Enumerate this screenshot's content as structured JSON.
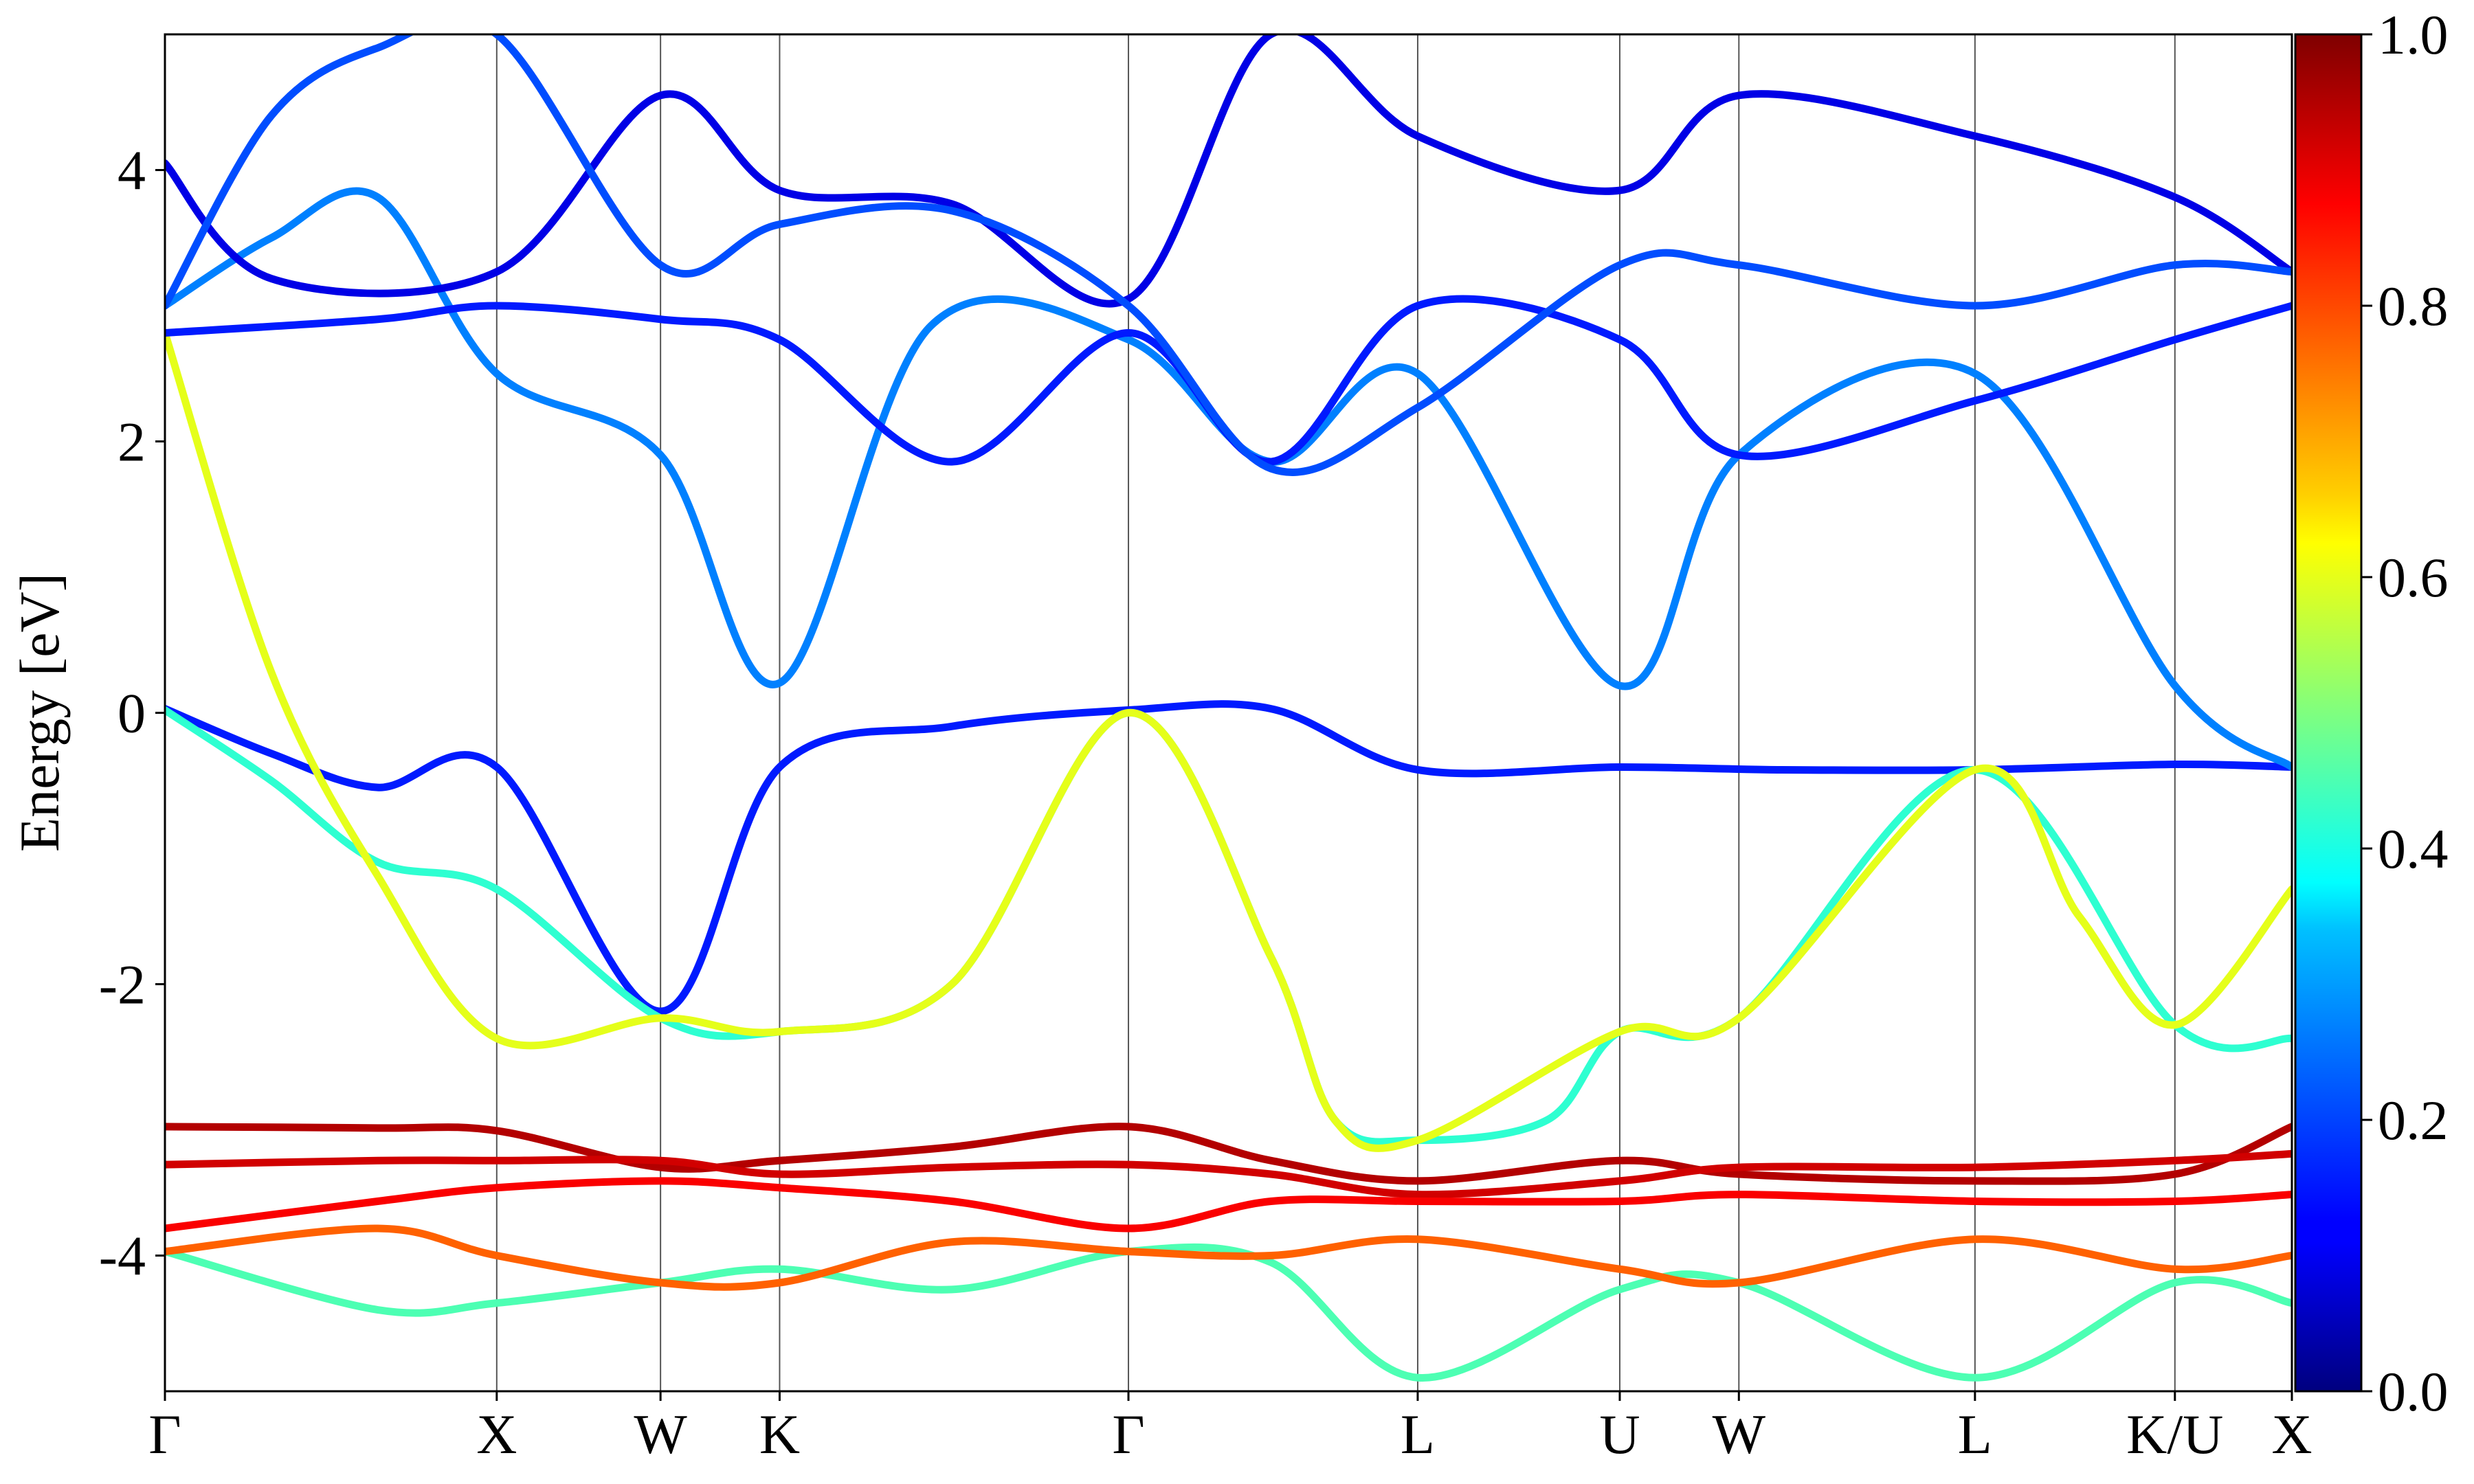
{
  "chart_data": {
    "type": "line",
    "title": "",
    "xlabel": "",
    "ylabel": "Energy [eV]",
    "ylim": [
      -5,
      5
    ],
    "yticks": [
      {
        "value": 4,
        "label": "4"
      },
      {
        "value": 2,
        "label": "2"
      },
      {
        "value": 0,
        "label": "0"
      },
      {
        "value": -2,
        "label": "-2"
      },
      {
        "value": -4,
        "label": "-4"
      }
    ],
    "k_path_labels": [
      "Γ",
      "X",
      "W",
      "K",
      "Γ",
      "L",
      "U",
      "W",
      "L",
      "K/U",
      "X"
    ],
    "k_path_positions": [
      0,
      0.156,
      0.233,
      0.289,
      0.453,
      0.589,
      0.684,
      0.74,
      0.851,
      0.945,
      1.0
    ],
    "colorbar": {
      "label": "",
      "range": [
        0.0,
        1.0
      ],
      "ticks": [
        {
          "value": 0.0,
          "label": "0.0"
        },
        {
          "value": 0.2,
          "label": "0.2"
        },
        {
          "value": 0.4,
          "label": "0.4"
        },
        {
          "value": 0.6,
          "label": "0.6"
        },
        {
          "value": 0.8,
          "label": "0.8"
        },
        {
          "value": 1.0,
          "label": "1.0"
        }
      ],
      "colormap": "jet"
    },
    "grid": false,
    "series": [
      {
        "points": [
          [
            0,
            0.03
          ],
          [
            0.05,
            -0.3
          ],
          [
            0.1,
            -0.55
          ],
          [
            0.156,
            -0.4
          ],
          [
            0.233,
            -2.2
          ],
          [
            0.289,
            -0.4
          ],
          [
            0.37,
            -0.1
          ],
          [
            0.453,
            0.02
          ],
          [
            0.52,
            0.03
          ],
          [
            0.589,
            -0.42
          ],
          [
            0.684,
            -0.4
          ],
          [
            0.76,
            -0.42
          ],
          [
            0.851,
            -0.42
          ],
          [
            0.945,
            -0.38
          ],
          [
            1.0,
            -0.4
          ]
        ],
        "weight": 0.15
      },
      {
        "points": [
          [
            0,
            0.02
          ],
          [
            0.05,
            -0.5
          ],
          [
            0.1,
            -1.1
          ],
          [
            0.156,
            -1.3
          ],
          [
            0.233,
            -2.25
          ],
          [
            0.289,
            -2.35
          ],
          [
            0.37,
            -2.0
          ],
          [
            0.453,
            0.0
          ],
          [
            0.52,
            -1.8
          ],
          [
            0.55,
            -3.0
          ],
          [
            0.589,
            -3.15
          ],
          [
            0.65,
            -3.0
          ],
          [
            0.684,
            -2.35
          ],
          [
            0.74,
            -2.25
          ],
          [
            0.851,
            -0.42
          ],
          [
            0.945,
            -2.3
          ],
          [
            1.0,
            -2.4
          ]
        ],
        "weight": 0.42
      },
      {
        "points": [
          [
            0,
            2.8
          ],
          [
            0.05,
            0.3
          ],
          [
            0.1,
            -1.2
          ],
          [
            0.156,
            -2.4
          ],
          [
            0.233,
            -2.25
          ],
          [
            0.289,
            -2.35
          ],
          [
            0.37,
            -2.0
          ],
          [
            0.453,
            0.0
          ],
          [
            0.52,
            -1.8
          ],
          [
            0.55,
            -3.0
          ],
          [
            0.589,
            -3.15
          ],
          [
            0.684,
            -2.35
          ],
          [
            0.74,
            -2.25
          ],
          [
            0.851,
            -0.42
          ],
          [
            0.9,
            -1.5
          ],
          [
            0.945,
            -2.3
          ],
          [
            1.0,
            -1.3
          ]
        ],
        "weight": 0.6
      },
      {
        "points": [
          [
            0,
            -3.05
          ],
          [
            0.1,
            -3.06
          ],
          [
            0.156,
            -3.08
          ],
          [
            0.233,
            -3.35
          ],
          [
            0.289,
            -3.3
          ],
          [
            0.37,
            -3.2
          ],
          [
            0.453,
            -3.05
          ],
          [
            0.52,
            -3.3
          ],
          [
            0.589,
            -3.45
          ],
          [
            0.684,
            -3.3
          ],
          [
            0.74,
            -3.4
          ],
          [
            0.851,
            -3.45
          ],
          [
            0.945,
            -3.4
          ],
          [
            1.0,
            -3.05
          ]
        ],
        "weight": 0.95
      },
      {
        "points": [
          [
            0,
            -3.33
          ],
          [
            0.1,
            -3.3
          ],
          [
            0.156,
            -3.3
          ],
          [
            0.233,
            -3.3
          ],
          [
            0.289,
            -3.4
          ],
          [
            0.37,
            -3.35
          ],
          [
            0.453,
            -3.33
          ],
          [
            0.52,
            -3.4
          ],
          [
            0.589,
            -3.55
          ],
          [
            0.684,
            -3.45
          ],
          [
            0.74,
            -3.35
          ],
          [
            0.851,
            -3.35
          ],
          [
            0.945,
            -3.3
          ],
          [
            1.0,
            -3.25
          ]
        ],
        "weight": 0.92
      },
      {
        "points": [
          [
            0,
            -3.8
          ],
          [
            0.1,
            -3.6
          ],
          [
            0.156,
            -3.5
          ],
          [
            0.233,
            -3.45
          ],
          [
            0.289,
            -3.5
          ],
          [
            0.37,
            -3.6
          ],
          [
            0.453,
            -3.8
          ],
          [
            0.52,
            -3.6
          ],
          [
            0.589,
            -3.6
          ],
          [
            0.684,
            -3.6
          ],
          [
            0.74,
            -3.55
          ],
          [
            0.851,
            -3.6
          ],
          [
            0.945,
            -3.6
          ],
          [
            1.0,
            -3.55
          ]
        ],
        "weight": 0.88
      },
      {
        "points": [
          [
            0,
            -3.97
          ],
          [
            0.1,
            -4.4
          ],
          [
            0.156,
            -4.35
          ],
          [
            0.233,
            -4.2
          ],
          [
            0.289,
            -4.1
          ],
          [
            0.37,
            -4.25
          ],
          [
            0.453,
            -3.97
          ],
          [
            0.52,
            -4.05
          ],
          [
            0.589,
            -4.9
          ],
          [
            0.684,
            -4.25
          ],
          [
            0.74,
            -4.2
          ],
          [
            0.851,
            -4.9
          ],
          [
            0.945,
            -4.2
          ],
          [
            1.0,
            -4.35
          ]
        ],
        "weight": 0.45
      },
      {
        "points": [
          [
            0,
            -3.97
          ],
          [
            0.1,
            -3.8
          ],
          [
            0.156,
            -4.0
          ],
          [
            0.233,
            -4.2
          ],
          [
            0.289,
            -4.2
          ],
          [
            0.37,
            -3.9
          ],
          [
            0.453,
            -3.97
          ],
          [
            0.52,
            -4.0
          ],
          [
            0.589,
            -3.88
          ],
          [
            0.684,
            -4.1
          ],
          [
            0.74,
            -4.2
          ],
          [
            0.851,
            -3.88
          ],
          [
            0.945,
            -4.1
          ],
          [
            1.0,
            -4.0
          ]
        ],
        "weight": 0.78
      },
      {
        "points": [
          [
            0,
            3.0
          ],
          [
            0.05,
            3.5
          ],
          [
            0.1,
            3.8
          ],
          [
            0.156,
            2.5
          ],
          [
            0.233,
            1.9
          ],
          [
            0.289,
            0.22
          ],
          [
            0.36,
            2.85
          ],
          [
            0.453,
            2.75
          ],
          [
            0.52,
            1.85
          ],
          [
            0.589,
            2.5
          ],
          [
            0.684,
            0.2
          ],
          [
            0.74,
            1.9
          ],
          [
            0.851,
            2.5
          ],
          [
            0.945,
            0.2
          ],
          [
            1.0,
            -0.4
          ]
        ],
        "weight": 0.25
      },
      {
        "points": [
          [
            0,
            2.8
          ],
          [
            0.1,
            2.9
          ],
          [
            0.156,
            3.0
          ],
          [
            0.233,
            2.9
          ],
          [
            0.289,
            2.75
          ],
          [
            0.37,
            1.85
          ],
          [
            0.453,
            2.8
          ],
          [
            0.52,
            1.85
          ],
          [
            0.589,
            3.0
          ],
          [
            0.684,
            2.75
          ],
          [
            0.74,
            1.9
          ],
          [
            0.851,
            2.3
          ],
          [
            0.945,
            2.75
          ],
          [
            1.0,
            3.0
          ]
        ],
        "weight": 0.15
      },
      {
        "points": [
          [
            0,
            4.05
          ],
          [
            0.05,
            3.2
          ],
          [
            0.156,
            3.25
          ],
          [
            0.233,
            4.55
          ],
          [
            0.289,
            3.85
          ],
          [
            0.37,
            3.75
          ],
          [
            0.453,
            3.05
          ],
          [
            0.52,
            5.0
          ],
          [
            0.589,
            4.25
          ],
          [
            0.684,
            3.85
          ],
          [
            0.74,
            4.55
          ],
          [
            0.851,
            4.25
          ],
          [
            0.945,
            3.8
          ],
          [
            1.0,
            3.25
          ]
        ],
        "weight": 0.1
      },
      {
        "points": [
          [
            0,
            3.0
          ],
          [
            0.05,
            4.4
          ],
          [
            0.1,
            4.9
          ],
          [
            0.156,
            5.0
          ],
          [
            0.233,
            3.3
          ],
          [
            0.289,
            3.6
          ],
          [
            0.37,
            3.7
          ],
          [
            0.453,
            3.0
          ],
          [
            0.52,
            1.8
          ],
          [
            0.589,
            2.25
          ],
          [
            0.684,
            3.3
          ],
          [
            0.74,
            3.3
          ],
          [
            0.851,
            3.0
          ],
          [
            0.945,
            3.3
          ],
          [
            1.0,
            3.25
          ]
        ],
        "weight": 0.2
      }
    ]
  }
}
